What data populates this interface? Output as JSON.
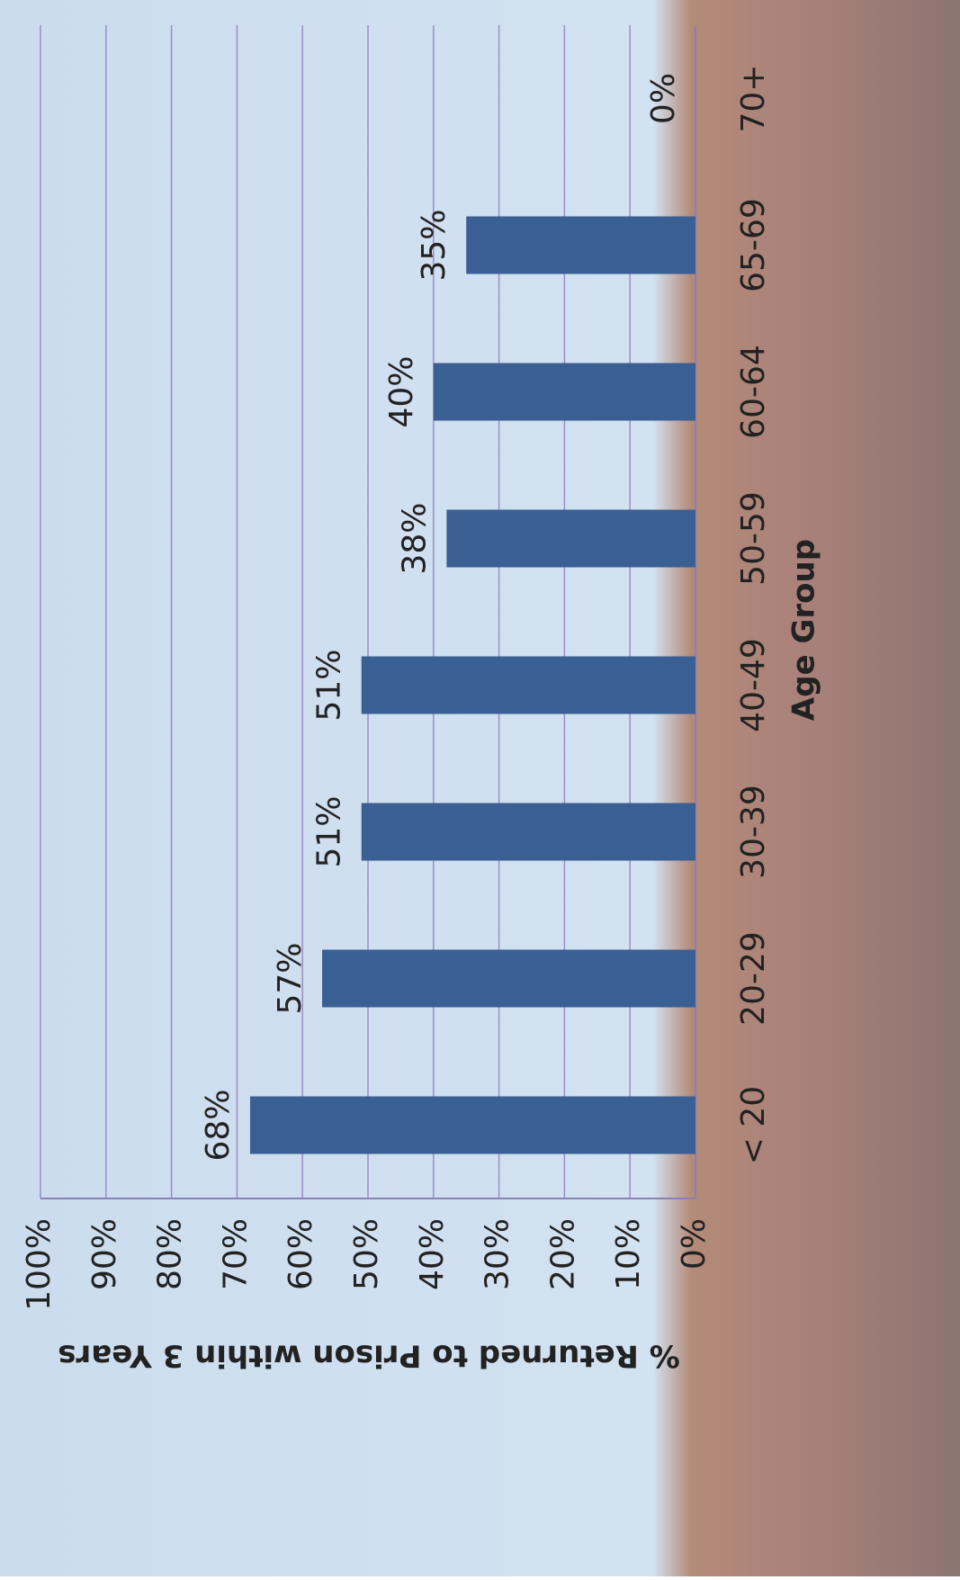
{
  "chart_data": {
    "type": "bar",
    "y_label": "% Returned to Prison within 3 Years",
    "x_label": "Age Group",
    "categories": [
      "< 20",
      "20-29",
      "30-39",
      "40-49",
      "50-59",
      "60-64",
      "65-69",
      "70+"
    ],
    "values": [
      68,
      57,
      51,
      51,
      38,
      40,
      35,
      0
    ],
    "value_labels": [
      "68%",
      "57%",
      "51%",
      "51%",
      "38%",
      "40%",
      "35%",
      "0%"
    ],
    "color": "#3a5f93",
    "ylim": [
      0,
      100
    ],
    "yticks": [
      {
        "value": 0,
        "label": "0%"
      },
      {
        "value": 10,
        "label": "10%"
      },
      {
        "value": 20,
        "label": "20%"
      },
      {
        "value": 30,
        "label": "30%"
      },
      {
        "value": 40,
        "label": "40%"
      },
      {
        "value": 50,
        "label": "50%"
      },
      {
        "value": 60,
        "label": "60%"
      },
      {
        "value": 70,
        "label": "70%"
      },
      {
        "value": 80,
        "label": "80%"
      },
      {
        "value": 90,
        "label": "90%"
      },
      {
        "value": 100,
        "label": "100%"
      }
    ],
    "grid": true
  }
}
